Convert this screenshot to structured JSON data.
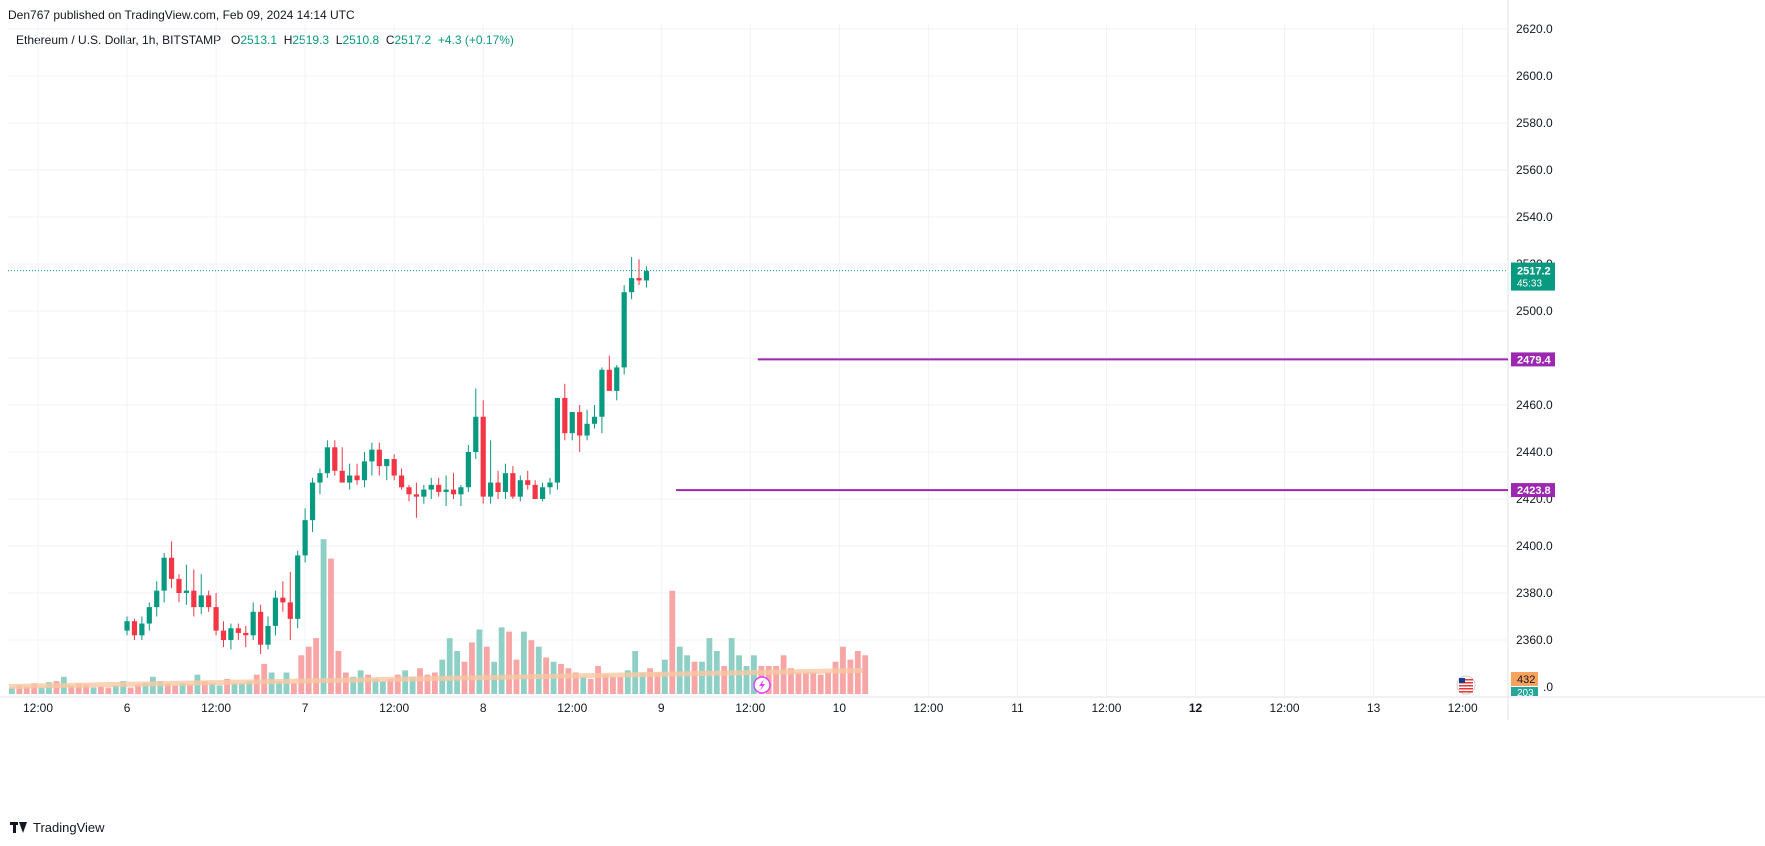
{
  "header": {
    "published": "Den767 published on TradingView.com, Feb 09, 2024 14:14 UTC"
  },
  "legend": {
    "symbol": "Ethereum / U.S. Dollar, 1h, BITSTAMP",
    "o_label": "O",
    "o": "2513.1",
    "h_label": "H",
    "h": "2519.3",
    "l_label": "L",
    "l": "2510.8",
    "c_label": "C",
    "c": "2517.2",
    "change": "+4.3 (+0.17%)"
  },
  "footer": {
    "brand": "TradingView"
  },
  "colors": {
    "up": "#089981",
    "down": "#f23645",
    "vol_up": "#8fd0c6",
    "vol_down": "#f7a5a5",
    "level": "#9c27b0",
    "ma_vol": "#f7c8a3",
    "grid": "#f0f3fa",
    "axis_text": "#131722"
  },
  "chart_data": {
    "type": "candlestick",
    "title": "Ethereum / U.S. Dollar, 1h, BITSTAMP",
    "ylim": [
      2347,
      2622
    ],
    "y_ticks": [
      "2360.0",
      "2380.0",
      "2400.0",
      "2420.0",
      "2440.0",
      "2460.0",
      "2480.0",
      "2500.0",
      "2520.0",
      "2540.0",
      "2560.0",
      "2580.0",
      "2600.0",
      "2620.0"
    ],
    "x_ticks": [
      "12:00",
      "6",
      "12:00",
      "7",
      "12:00",
      "8",
      "12:00",
      "9",
      "12:00",
      "10",
      "12:00",
      "11",
      "12:00",
      "12",
      "12:00",
      "13",
      "12:00"
    ],
    "x_bold": [
      "12"
    ],
    "first_bar_index": 24,
    "candles": [
      [
        2364,
        2370,
        2362,
        2368
      ],
      [
        2368,
        2369,
        2360,
        2362
      ],
      [
        2362,
        2370,
        2360,
        2367
      ],
      [
        2367,
        2376,
        2364,
        2374
      ],
      [
        2374,
        2385,
        2370,
        2381
      ],
      [
        2381,
        2397,
        2376,
        2395
      ],
      [
        2395,
        2402,
        2382,
        2386
      ],
      [
        2386,
        2388,
        2376,
        2380
      ],
      [
        2380,
        2392,
        2375,
        2381
      ],
      [
        2381,
        2390,
        2370,
        2374
      ],
      [
        2374,
        2388,
        2371,
        2379
      ],
      [
        2379,
        2381,
        2372,
        2374
      ],
      [
        2374,
        2380,
        2362,
        2364
      ],
      [
        2364,
        2368,
        2357,
        2360
      ],
      [
        2360,
        2367,
        2356,
        2365
      ],
      [
        2365,
        2367,
        2360,
        2363
      ],
      [
        2363,
        2366,
        2357,
        2362
      ],
      [
        2362,
        2376,
        2360,
        2372
      ],
      [
        2372,
        2375,
        2354,
        2358
      ],
      [
        2358,
        2370,
        2356,
        2366
      ],
      [
        2366,
        2381,
        2362,
        2378
      ],
      [
        2378,
        2385,
        2372,
        2376
      ],
      [
        2376,
        2389,
        2360,
        2369
      ],
      [
        2369,
        2398,
        2365,
        2396
      ],
      [
        2396,
        2416,
        2393,
        2411
      ],
      [
        2411,
        2429,
        2406,
        2427
      ],
      [
        2427,
        2433,
        2422,
        2431
      ],
      [
        2431,
        2445,
        2429,
        2442
      ],
      [
        2442,
        2445,
        2430,
        2432
      ],
      [
        2432,
        2442,
        2427,
        2427
      ],
      [
        2427,
        2435,
        2424,
        2430
      ],
      [
        2430,
        2435,
        2426,
        2428
      ],
      [
        2428,
        2440,
        2425,
        2436
      ],
      [
        2436,
        2444,
        2430,
        2441
      ],
      [
        2441,
        2444,
        2430,
        2434
      ],
      [
        2434,
        2437,
        2428,
        2437
      ],
      [
        2437,
        2439,
        2428,
        2430
      ],
      [
        2430,
        2433,
        2424,
        2425
      ],
      [
        2425,
        2426,
        2419,
        2422
      ],
      [
        2422,
        2427,
        2412,
        2421
      ],
      [
        2421,
        2426,
        2418,
        2424
      ],
      [
        2424,
        2429,
        2420,
        2426
      ],
      [
        2426,
        2429,
        2421,
        2423
      ],
      [
        2423,
        2430,
        2417,
        2424
      ],
      [
        2424,
        2431,
        2420,
        2422
      ],
      [
        2422,
        2426,
        2417,
        2425
      ],
      [
        2425,
        2443,
        2423,
        2440
      ],
      [
        2440,
        2467,
        2437,
        2455
      ],
      [
        2455,
        2462,
        2418,
        2421
      ],
      [
        2421,
        2445,
        2418,
        2427
      ],
      [
        2427,
        2432,
        2420,
        2423
      ],
      [
        2423,
        2435,
        2420,
        2431
      ],
      [
        2431,
        2434,
        2420,
        2421
      ],
      [
        2421,
        2430,
        2419,
        2428
      ],
      [
        2428,
        2432,
        2424,
        2426
      ],
      [
        2426,
        2428,
        2420,
        2420
      ],
      [
        2420,
        2427,
        2419,
        2425
      ],
      [
        2425,
        2429,
        2422,
        2427
      ],
      [
        2427,
        2463,
        2424,
        2463
      ],
      [
        2463,
        2469,
        2445,
        2448
      ],
      [
        2448,
        2457,
        2445,
        2457
      ],
      [
        2457,
        2460,
        2440,
        2447
      ],
      [
        2447,
        2458,
        2445,
        2452
      ],
      [
        2452,
        2460,
        2450,
        2455
      ],
      [
        2455,
        2476,
        2448,
        2475
      ],
      [
        2475,
        2481,
        2468,
        2466
      ],
      [
        2466,
        2477,
        2462,
        2476
      ],
      [
        2476,
        2511,
        2473,
        2508
      ],
      [
        2508,
        2523,
        2505,
        2514
      ],
      [
        2514,
        2522,
        2511,
        2513
      ],
      [
        2513,
        2519,
        2510,
        2517
      ]
    ],
    "levels": [
      {
        "price": 2479.4,
        "label": "2479.4",
        "from_bar": 85
      },
      {
        "price": 2423.8,
        "label": "2423.8",
        "from_bar": 74
      }
    ],
    "last_price": {
      "value": 2517.2,
      "label": "2517.2",
      "countdown": "45:33"
    },
    "volume_labels": {
      "vol": "432",
      "vol_ma": "203"
    },
    "volumes": [
      0.3,
      0.4,
      0.35,
      0.5,
      0.3,
      0.55,
      0.6,
      0.8,
      0.4,
      0.5,
      0.45,
      0.3,
      0.35,
      0.3,
      0.4,
      0.6,
      0.3,
      0.45,
      0.5,
      0.8,
      0.6,
      0.5,
      0.4,
      0.5,
      0.45,
      0.9,
      0.6,
      0.5,
      0.4,
      0.7,
      0.5,
      0.5,
      0.6,
      0.9,
      1.4,
      1.0,
      0.6,
      1.0,
      0.5,
      1.8,
      2.2,
      2.6,
      7.2,
      6.3,
      2.0,
      1.0,
      0.8,
      1.1,
      0.9,
      0.7,
      0.6,
      0.7,
      0.9,
      1.1,
      0.8,
      1.2,
      0.9,
      1.0,
      1.6,
      2.6,
      2.0,
      1.5,
      2.4,
      3.0,
      2.2,
      1.5,
      3.1,
      2.9,
      1.6,
      2.9,
      2.5,
      2.2,
      1.7,
      1.5,
      1.4,
      1.2,
      1.0,
      0.8,
      0.7,
      1.3,
      0.9,
      0.8,
      0.8,
      1.1,
      2.0,
      1.0,
      1.2,
      1.0,
      1.6,
      4.8,
      2.2,
      1.8,
      1.5,
      1.5,
      2.6,
      2.0,
      1.3,
      2.6,
      1.8,
      1.3,
      1.8,
      1.3,
      1.3,
      1.3,
      1.8,
      1.2,
      1.0,
      1.0,
      1.0,
      0.9,
      1.0,
      1.5,
      2.2,
      1.6,
      2.0,
      1.8
    ],
    "volume_dirs": "uddduududddudduudduuuddududuuduuudduuudddduddduuduudduuddduuudduduuddudududdduddddduuudduduuduuuduuuu"
  }
}
